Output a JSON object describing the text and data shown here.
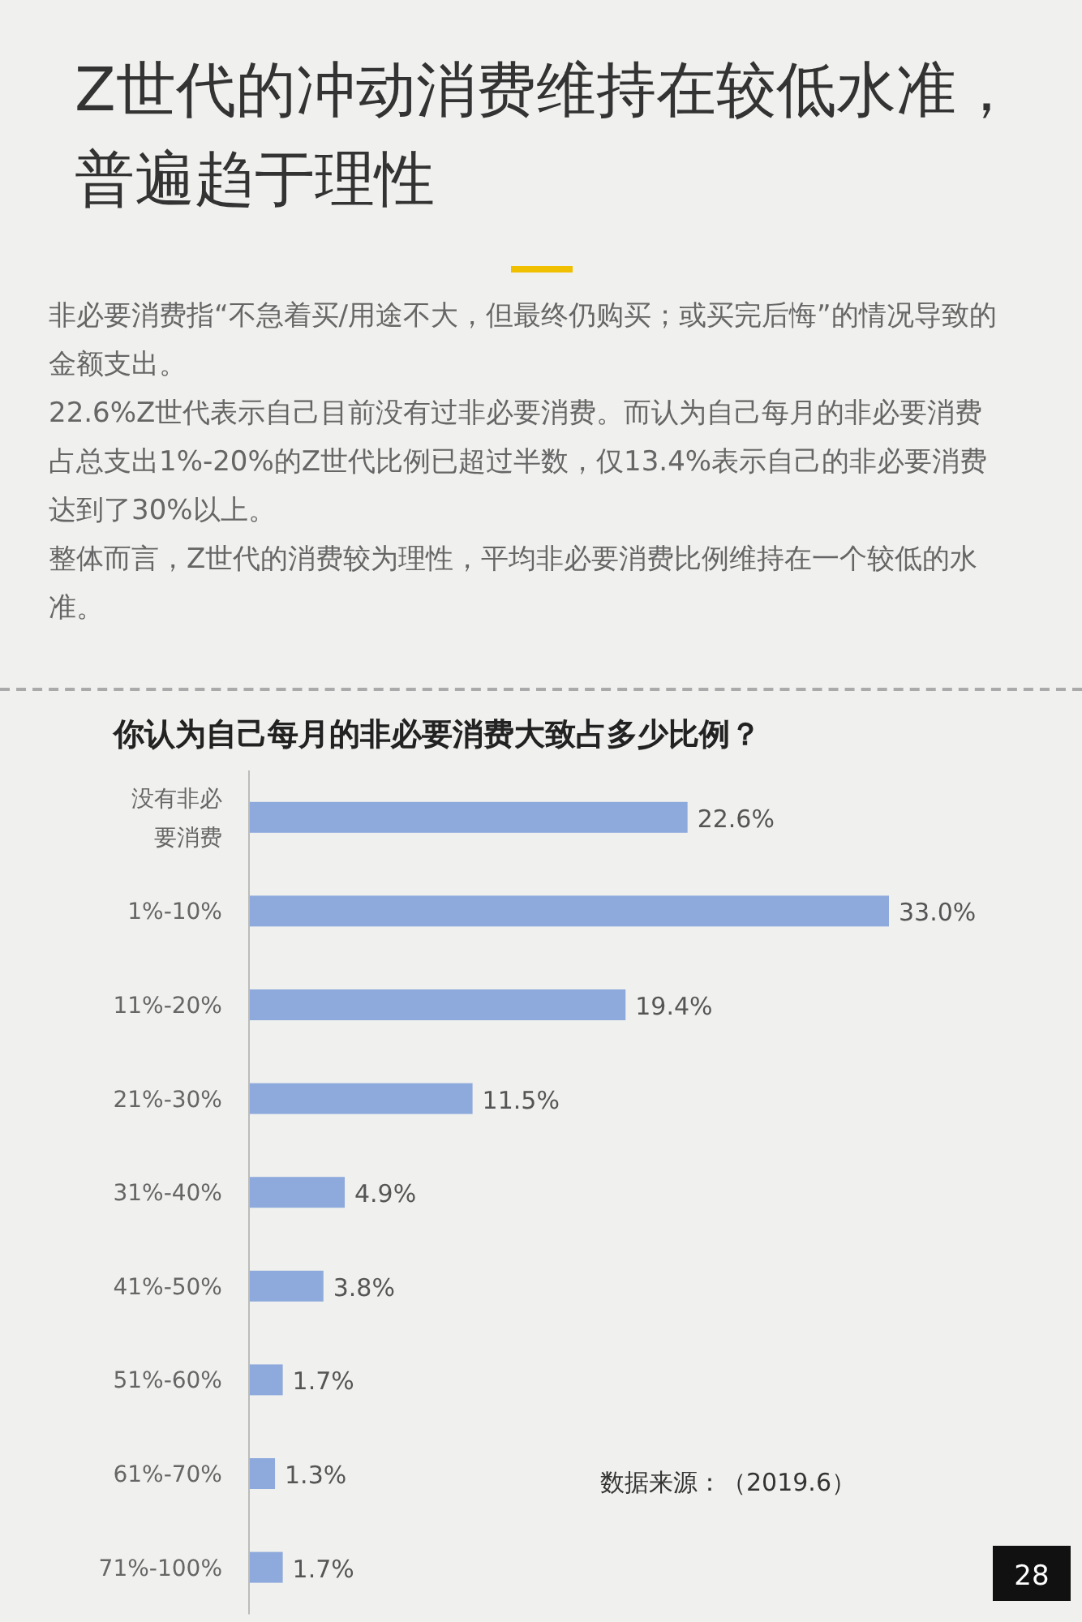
{
  "chart_data": {
    "type": "bar",
    "orientation": "horizontal",
    "title": "Z世代的冲动消费维持在较低水准，普遍趋于理性",
    "subtitle": "你认为自己每月的非必要消费大致占多少比例？",
    "annotations": [
      "非必要消费指“不急着买/用途不大，但最终仍购买；或买完后悔”的情况导致的金额支出。",
      "22.6%Z世代表示自己目前没有过非必要消费。而认为自己每月的非必要消费占总支出1%-20%的Z世代比例已超过半数，仅13.4%表示自己的非必要消费达到了30%以上。",
      "整体而言，Z世代的消费较为理性，平均非必要消费比例维持在一个较低的水准。",
      "数据来源：（2019.6）",
      "28"
    ],
    "categories": [
      "没有非必要消费",
      "1%-10%",
      "11%-20%",
      "21%-30%",
      "31%-40%",
      "41%-50%",
      "51%-60%",
      "61%-70%",
      "71%-100%"
    ],
    "values": [
      22.6,
      33.0,
      19.4,
      11.5,
      4.9,
      3.8,
      1.7,
      1.3,
      1.7
    ],
    "value_labels": [
      "22.6%",
      "33.0%",
      "19.4%",
      "11.5%",
      "4.9%",
      "3.8%",
      "1.7%",
      "1.3%",
      "1.7%"
    ],
    "color": "#8eaadc"
  }
}
